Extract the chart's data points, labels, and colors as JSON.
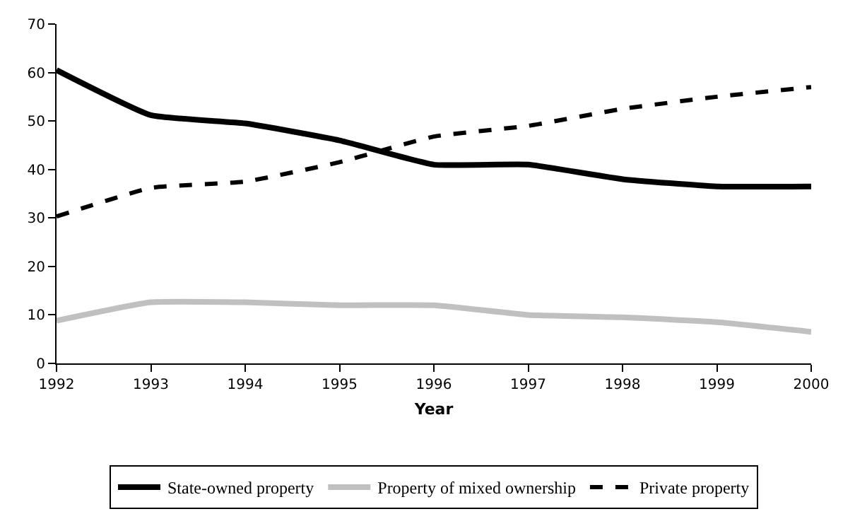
{
  "chart_data": {
    "type": "line",
    "xlabel": "Year",
    "x": [
      1992,
      1993,
      1994,
      1995,
      1996,
      1997,
      1998,
      1999,
      2000
    ],
    "series": [
      {
        "name": "State-owned property",
        "color": "#000000",
        "line_style": "solid",
        "values": [
          60.5,
          51.2,
          49.5,
          46,
          41,
          41,
          38,
          36.5,
          36.5
        ]
      },
      {
        "name": "Property of mixed ownership",
        "color": "#c0c0c0",
        "line_style": "solid",
        "values": [
          8.8,
          12.6,
          12.6,
          12,
          12,
          10,
          9.5,
          8.5,
          6.5
        ]
      },
      {
        "name": "Private property",
        "color": "#000000",
        "line_style": "dashed",
        "values": [
          30.3,
          36.2,
          37.5,
          41.5,
          46.8,
          49,
          52.5,
          55,
          57
        ]
      }
    ],
    "xlim": [
      1992,
      2000
    ],
    "xticks": [
      1992,
      1993,
      1994,
      1995,
      1996,
      1997,
      1998,
      1999,
      2000
    ],
    "ylim": [
      0,
      70
    ],
    "yticks": [
      0,
      10,
      20,
      30,
      40,
      50,
      60,
      70
    ],
    "legend": "bottom"
  }
}
